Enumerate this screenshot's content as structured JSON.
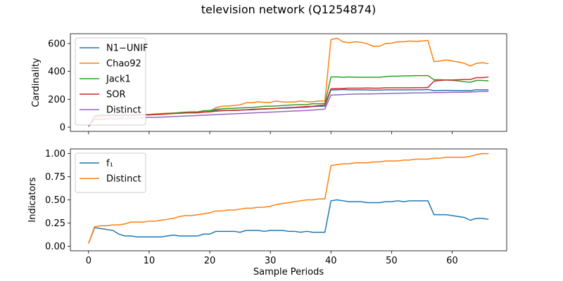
{
  "title": "television network (Q1254874)",
  "colors": {
    "blue": "#1f77b4",
    "orange": "#ff7f0e",
    "green": "#2ca02c",
    "red": "#d62728",
    "purple": "#9467bd"
  },
  "chart_data": [
    {
      "type": "line",
      "xlabel": "",
      "ylabel": "Cardinality",
      "xlim": [
        -3,
        69
      ],
      "ylim": [
        -30,
        670
      ],
      "xticks": [
        0,
        10,
        20,
        30,
        40,
        50,
        60
      ],
      "yticks": [
        0,
        200,
        400,
        600
      ],
      "ytick_labels": [
        "0",
        "200",
        "400",
        "600"
      ],
      "x_tick_labels_visible": false,
      "legend_position": "upper-left",
      "series": [
        {
          "name": "N1−UNIF",
          "color": "#1f77b4",
          "values": [
            5,
            80,
            88,
            88,
            88,
            88,
            88,
            89,
            90,
            90,
            90,
            92,
            93,
            95,
            100,
            103,
            104,
            104,
            105,
            110,
            112,
            120,
            120,
            121,
            122,
            123,
            124,
            125,
            128,
            130,
            132,
            135,
            136,
            137,
            140,
            142,
            143,
            148,
            150,
            150,
            268,
            268,
            270,
            268,
            268,
            268,
            267,
            266,
            266,
            268,
            268,
            268,
            268,
            268,
            268,
            268,
            270,
            262,
            263,
            264,
            263,
            262,
            262,
            262,
            268,
            268,
            268
          ]
        },
        {
          "name": "Chao92",
          "color": "#ff7f0e",
          "values": [
            5,
            60,
            60,
            60,
            60,
            60,
            85,
            88,
            88,
            90,
            90,
            95,
            98,
            100,
            102,
            103,
            104,
            105,
            108,
            110,
            112,
            140,
            150,
            152,
            155,
            160,
            175,
            175,
            182,
            178,
            178,
            188,
            180,
            180,
            180,
            188,
            182,
            182,
            188,
            188,
            628,
            638,
            612,
            605,
            612,
            608,
            598,
            580,
            580,
            600,
            602,
            612,
            612,
            618,
            615,
            618,
            622,
            470,
            475,
            482,
            475,
            468,
            458,
            438,
            458,
            462,
            455
          ]
        },
        {
          "name": "Jack1",
          "color": "#2ca02c",
          "values": [
            5,
            80,
            85,
            85,
            85,
            85,
            88,
            88,
            88,
            90,
            90,
            92,
            95,
            98,
            100,
            105,
            108,
            110,
            110,
            118,
            120,
            128,
            132,
            135,
            135,
            138,
            140,
            142,
            145,
            150,
            150,
            152,
            155,
            158,
            160,
            162,
            162,
            168,
            168,
            170,
            360,
            360,
            358,
            360,
            358,
            358,
            358,
            358,
            358,
            362,
            365,
            365,
            368,
            368,
            370,
            370,
            370,
            340,
            340,
            338,
            336,
            332,
            326,
            322,
            335,
            335,
            332
          ]
        },
        {
          "name": "SOR",
          "color": "#d62728",
          "values": [
            5,
            75,
            80,
            82,
            82,
            82,
            85,
            85,
            85,
            88,
            88,
            90,
            92,
            95,
            98,
            100,
            102,
            103,
            103,
            108,
            110,
            115,
            118,
            120,
            120,
            122,
            125,
            128,
            130,
            132,
            133,
            135,
            138,
            140,
            142,
            145,
            148,
            150,
            155,
            160,
            275,
            277,
            278,
            280,
            280,
            280,
            281,
            280,
            280,
            282,
            282,
            282,
            282,
            282,
            283,
            283,
            285,
            330,
            335,
            338,
            338,
            340,
            342,
            342,
            355,
            355,
            360
          ]
        },
        {
          "name": "Distinct",
          "color": "#9467bd",
          "values": [
            5,
            55,
            55,
            58,
            60,
            62,
            62,
            65,
            65,
            68,
            70,
            70,
            72,
            74,
            76,
            78,
            80,
            82,
            84,
            86,
            88,
            90,
            92,
            94,
            96,
            98,
            100,
            102,
            104,
            106,
            108,
            110,
            112,
            114,
            116,
            118,
            120,
            123,
            126,
            130,
            230,
            232,
            234,
            236,
            237,
            238,
            238,
            239,
            240,
            241,
            242,
            243,
            244,
            245,
            246,
            246,
            247,
            248,
            248,
            249,
            250,
            250,
            251,
            252,
            254,
            256,
            256
          ]
        }
      ]
    },
    {
      "type": "line",
      "xlabel": "Sample Periods",
      "ylabel": "Indicators",
      "xlim": [
        -3,
        69
      ],
      "ylim": [
        -0.05,
        1.05
      ],
      "xticks": [
        0,
        10,
        20,
        30,
        40,
        50,
        60
      ],
      "xtick_labels": [
        "0",
        "10",
        "20",
        "30",
        "40",
        "50",
        "60"
      ],
      "yticks": [
        0,
        0.25,
        0.5,
        0.75,
        1.0
      ],
      "ytick_labels": [
        "0.00",
        "0.25",
        "0.50",
        "0.75",
        "1.00"
      ],
      "legend_position": "upper-left",
      "series": [
        {
          "name": "f₁",
          "color": "#1f77b4",
          "values": [
            0.03,
            0.2,
            0.19,
            0.18,
            0.17,
            0.13,
            0.11,
            0.11,
            0.1,
            0.1,
            0.1,
            0.1,
            0.1,
            0.11,
            0.12,
            0.11,
            0.11,
            0.11,
            0.11,
            0.13,
            0.13,
            0.16,
            0.16,
            0.16,
            0.16,
            0.15,
            0.17,
            0.17,
            0.17,
            0.16,
            0.17,
            0.17,
            0.17,
            0.16,
            0.16,
            0.15,
            0.16,
            0.15,
            0.15,
            0.15,
            0.49,
            0.5,
            0.49,
            0.48,
            0.48,
            0.48,
            0.47,
            0.47,
            0.47,
            0.48,
            0.48,
            0.49,
            0.48,
            0.49,
            0.49,
            0.49,
            0.49,
            0.34,
            0.34,
            0.34,
            0.33,
            0.32,
            0.31,
            0.28,
            0.3,
            0.3,
            0.29
          ]
        },
        {
          "name": "Distinct",
          "color": "#ff7f0e",
          "values": [
            0.03,
            0.21,
            0.22,
            0.22,
            0.23,
            0.23,
            0.24,
            0.26,
            0.26,
            0.26,
            0.27,
            0.27,
            0.28,
            0.29,
            0.3,
            0.32,
            0.33,
            0.33,
            0.34,
            0.35,
            0.36,
            0.38,
            0.38,
            0.39,
            0.39,
            0.4,
            0.41,
            0.41,
            0.42,
            0.42,
            0.43,
            0.45,
            0.46,
            0.47,
            0.48,
            0.49,
            0.5,
            0.5,
            0.51,
            0.51,
            0.87,
            0.88,
            0.89,
            0.89,
            0.9,
            0.9,
            0.9,
            0.91,
            0.91,
            0.92,
            0.92,
            0.92,
            0.93,
            0.93,
            0.94,
            0.94,
            0.94,
            0.95,
            0.95,
            0.96,
            0.96,
            0.96,
            0.96,
            0.97,
            0.99,
            1.0,
            1.0
          ]
        }
      ]
    }
  ]
}
